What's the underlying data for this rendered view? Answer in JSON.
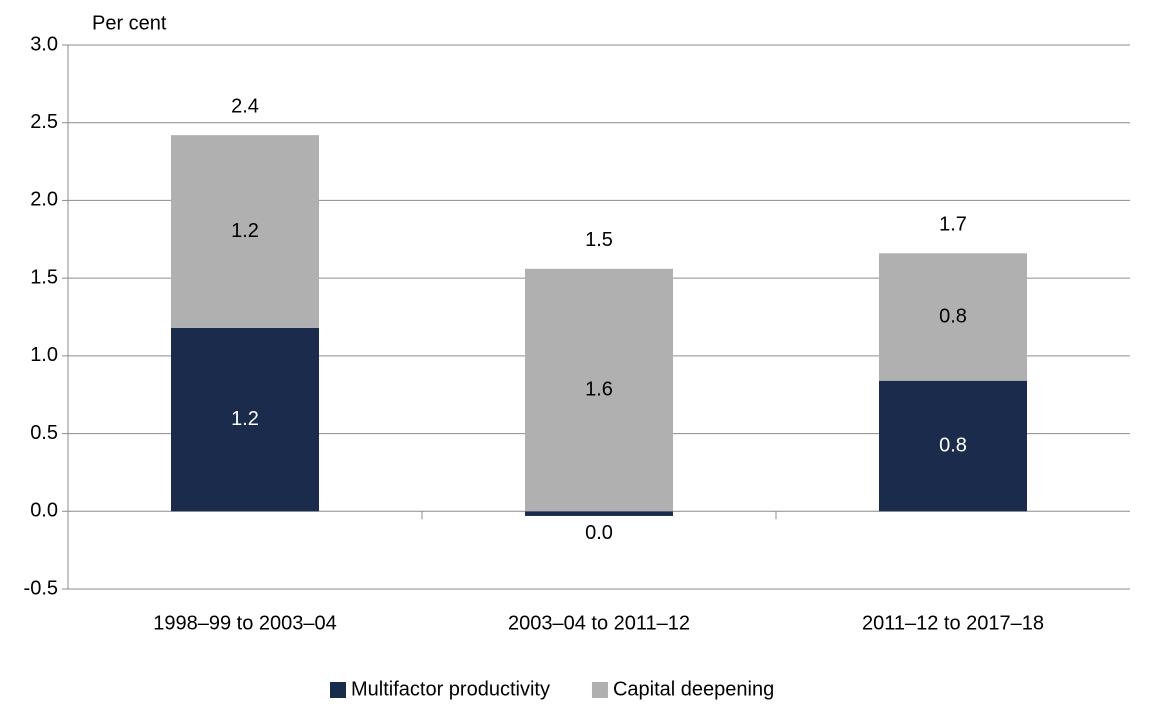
{
  "chart_data": {
    "type": "stacked-bar",
    "y_label": "Per cent",
    "categories": [
      "1998–99 to 2003–04",
      "2003–04 to 2011–12",
      "2011–12 to 2017–18"
    ],
    "series": [
      {
        "name": "Multifactor productivity",
        "color": "#1b2b4b",
        "values": [
          1.18,
          -0.03,
          0.84
        ],
        "value_labels": [
          "1.2",
          "0.0",
          "0.8"
        ],
        "label_color": "#ffffff"
      },
      {
        "name": "Capital deepening",
        "color": "#b0b0b0",
        "values": [
          1.24,
          1.56,
          0.82
        ],
        "value_labels": [
          "1.2",
          "1.6",
          "0.8"
        ],
        "label_color": "#000000"
      }
    ],
    "totals": [
      2.42,
      1.53,
      1.66
    ],
    "total_labels": [
      "2.4",
      "1.5",
      "1.7"
    ],
    "ylim": [
      -0.5,
      3
    ],
    "yticks": [
      -0.5,
      {
        "value": 0,
        "label": "0.0"
      },
      0.5,
      {
        "value": 1,
        "label": "1.0"
      },
      1.5,
      {
        "value": 2,
        "label": "2.0"
      },
      2.5,
      {
        "value": 3,
        "label": "3.0"
      }
    ],
    "grid": true
  }
}
